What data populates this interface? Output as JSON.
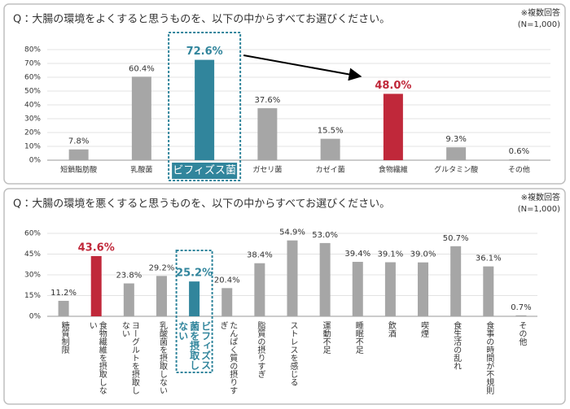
{
  "chart_data": [
    {
      "type": "bar",
      "title": "Q：大腸の環境をよくすると思うものを、以下の中からすべてお選びください。",
      "notes": [
        "※複数回答",
        "(N=1,000)"
      ],
      "categories": [
        "短鎖脂肪酸",
        "乳酸菌",
        "ビフィズス菌",
        "ガセリ菌",
        "カゼイ菌",
        "食物繊維",
        "グルタミン酸",
        "その他"
      ],
      "values": [
        7.8,
        60.4,
        72.6,
        37.6,
        15.5,
        48.0,
        9.3,
        0.6
      ],
      "value_labels": [
        "7.8%",
        "60.4%",
        "72.6%",
        "37.6%",
        "15.5%",
        "48.0%",
        "9.3%",
        "0.6%"
      ],
      "colors": [
        "#a6a6a6",
        "#a6a6a6",
        "#31859c",
        "#a6a6a6",
        "#a6a6a6",
        "#c0283a",
        "#a6a6a6",
        "#a6a6a6"
      ],
      "highlight_color": "#31859c",
      "ylim": [
        0,
        80
      ],
      "yticks": [
        {
          "value": 0,
          "label": "0%"
        },
        {
          "value": 10,
          "label": "10%"
        },
        {
          "value": 20,
          "label": "20%"
        },
        {
          "value": 30,
          "label": "30%"
        },
        {
          "value": 40,
          "label": "40%"
        },
        {
          "value": 50,
          "label": "50%"
        },
        {
          "value": 60,
          "label": "60%"
        },
        {
          "value": 70,
          "label": "70%"
        },
        {
          "value": 80,
          "label": "80%"
        }
      ],
      "grid": true
    },
    {
      "type": "bar",
      "title": "Q：大腸の環境を悪くすると思うものを、以下の中からすべてお選びください。",
      "notes": [
        "※複数回答",
        "(N=1,000)"
      ],
      "categories": [
        "糖質制限",
        "食物繊維を摂取しない",
        "ヨーグルトを摂取しない",
        "乳酸菌を摂取しない",
        "ビフィズス菌を摂取しない",
        "たんぱく質の摂りすぎ",
        "脂質の摂りすぎ",
        "ストレスを感じる",
        "運動不足",
        "睡眠不足",
        "飲酒",
        "喫煙",
        "食生活の乱れ",
        "食事の時間が不規則",
        "その他"
      ],
      "values": [
        11.2,
        43.6,
        23.8,
        29.2,
        25.2,
        20.4,
        38.4,
        54.9,
        53.0,
        39.4,
        39.1,
        39.0,
        50.7,
        36.1,
        0.7
      ],
      "value_labels": [
        "11.2%",
        "43.6%",
        "23.8%",
        "29.2%",
        "25.2%",
        "20.4%",
        "38.4%",
        "54.9%",
        "53.0%",
        "39.4%",
        "39.1%",
        "39.0%",
        "50.7%",
        "36.1%",
        "0.7%"
      ],
      "colors": [
        "#a6a6a6",
        "#c0283a",
        "#a6a6a6",
        "#a6a6a6",
        "#31859c",
        "#a6a6a6",
        "#a6a6a6",
        "#a6a6a6",
        "#a6a6a6",
        "#a6a6a6",
        "#a6a6a6",
        "#a6a6a6",
        "#a6a6a6",
        "#a6a6a6",
        "#a6a6a6"
      ],
      "highlight_color": "#31859c",
      "ylim": [
        0,
        60
      ],
      "yticks": [
        {
          "value": 0,
          "label": "0%"
        },
        {
          "value": 15,
          "label": "15%"
        },
        {
          "value": 30,
          "label": "30%"
        },
        {
          "value": 45,
          "label": "45%"
        },
        {
          "value": 60,
          "label": "60%"
        }
      ],
      "grid": true
    }
  ]
}
